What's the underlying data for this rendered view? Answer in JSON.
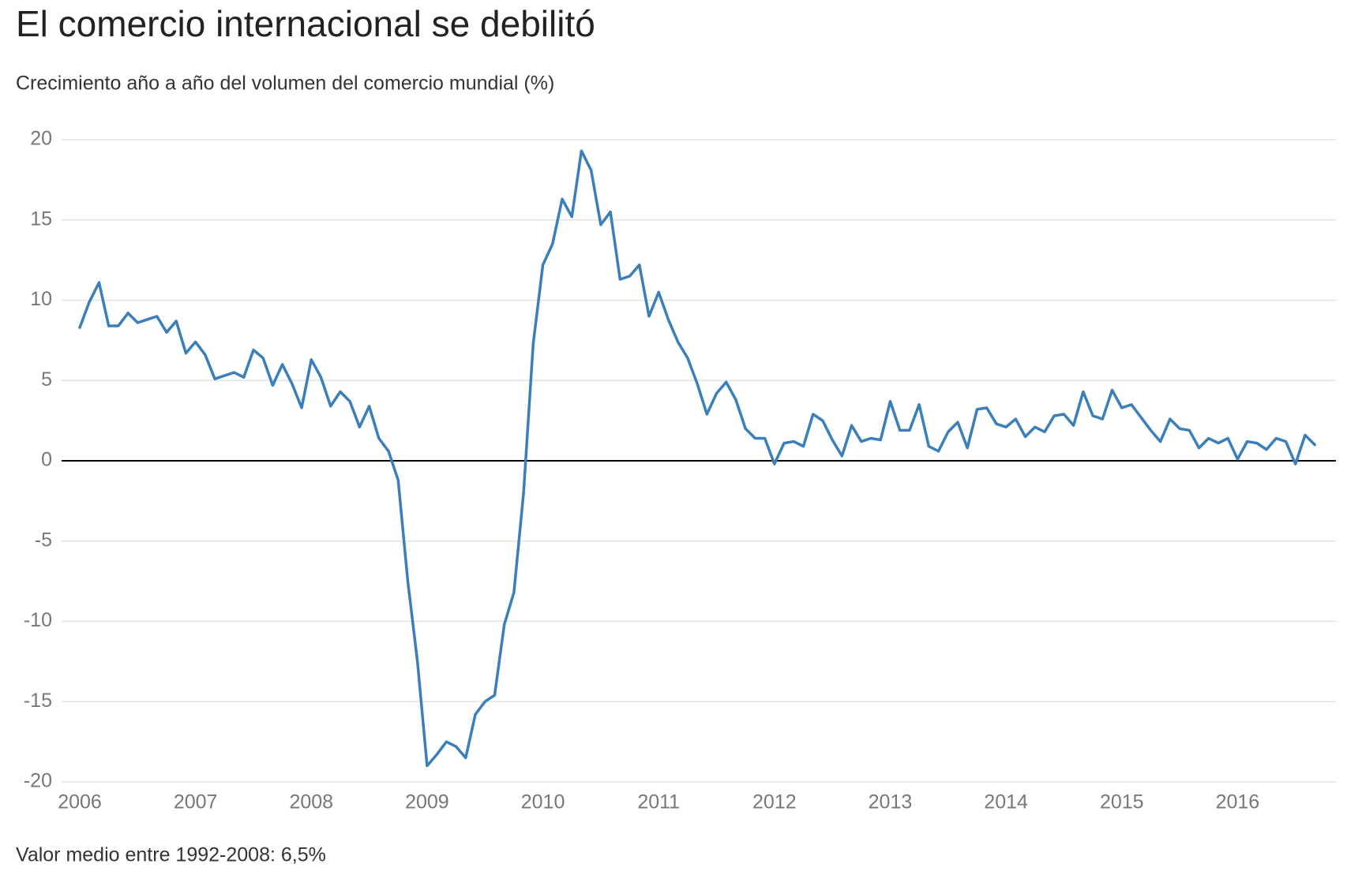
{
  "chart_data": {
    "type": "line",
    "title": "El comercio internacional se debilitó",
    "subtitle": "Crecimiento año a año del volumen del comercio mundial (%)",
    "note": "Valor medio entre 1992-2008: 6,5%",
    "categories": [
      "2006",
      null,
      null,
      null,
      null,
      null,
      null,
      null,
      null,
      null,
      null,
      null,
      "2007",
      null,
      null,
      null,
      null,
      null,
      null,
      null,
      null,
      null,
      null,
      null,
      "2008",
      null,
      null,
      null,
      null,
      null,
      null,
      null,
      null,
      null,
      null,
      null,
      "2009",
      null,
      null,
      null,
      null,
      null,
      null,
      null,
      null,
      null,
      null,
      null,
      "2010",
      null,
      null,
      null,
      null,
      null,
      null,
      null,
      null,
      null,
      null,
      null,
      "2011",
      null,
      null,
      null,
      null,
      null,
      null,
      null,
      null,
      null,
      null,
      null,
      "2012",
      null,
      null,
      null,
      null,
      null,
      null,
      null,
      null,
      null,
      null,
      null,
      "2013",
      null,
      null,
      null,
      null,
      null,
      null,
      null,
      null,
      null,
      null,
      null,
      "2014",
      null,
      null,
      null,
      null,
      null,
      null,
      null,
      null,
      null,
      null,
      null,
      "2015",
      null,
      null,
      null,
      null,
      null,
      null,
      null,
      null,
      null,
      null,
      null,
      "2016",
      null,
      null,
      null,
      null,
      null,
      null,
      null,
      null
    ],
    "values": [
      8.3,
      9.9,
      11.1,
      8.4,
      8.4,
      9.2,
      8.6,
      8.8,
      9.0,
      8.0,
      8.7,
      6.7,
      7.4,
      6.6,
      5.1,
      5.3,
      5.5,
      5.2,
      6.9,
      6.4,
      4.7,
      6.0,
      4.8,
      3.3,
      6.3,
      5.2,
      3.4,
      4.3,
      3.7,
      2.1,
      3.4,
      1.4,
      0.6,
      -1.2,
      -7.5,
      -12.5,
      -19.0,
      -18.3,
      -17.5,
      -17.8,
      -18.5,
      -15.8,
      -15.0,
      -14.6,
      -10.2,
      -8.2,
      -2.0,
      7.3,
      12.2,
      13.5,
      16.3,
      15.2,
      19.3,
      18.1,
      14.7,
      15.5,
      11.3,
      11.5,
      12.2,
      9.0,
      10.5,
      8.8,
      7.4,
      6.4,
      4.8,
      2.9,
      4.2,
      4.9,
      3.8,
      2.0,
      1.4,
      1.4,
      -0.2,
      1.1,
      1.2,
      0.9,
      2.9,
      2.5,
      1.3,
      0.3,
      2.2,
      1.2,
      1.4,
      1.3,
      3.7,
      1.9,
      1.9,
      3.5,
      0.9,
      0.6,
      1.8,
      2.4,
      0.8,
      3.2,
      3.3,
      2.3,
      2.1,
      2.6,
      1.5,
      2.1,
      1.8,
      2.8,
      2.9,
      2.2,
      4.3,
      2.8,
      2.6,
      4.4,
      3.3,
      3.5,
      2.7,
      1.9,
      1.2,
      2.6,
      2.0,
      1.9,
      0.8,
      1.4,
      1.1,
      1.4,
      0.1,
      1.2,
      1.1,
      0.7,
      1.4,
      1.2,
      -0.2,
      1.6,
      1.0
    ],
    "color": "#3a7fba",
    "ylim": [
      -20,
      20
    ],
    "yticks": [
      -20,
      -15,
      -10,
      -5,
      0,
      5,
      10,
      15,
      20
    ],
    "grid": true
  }
}
